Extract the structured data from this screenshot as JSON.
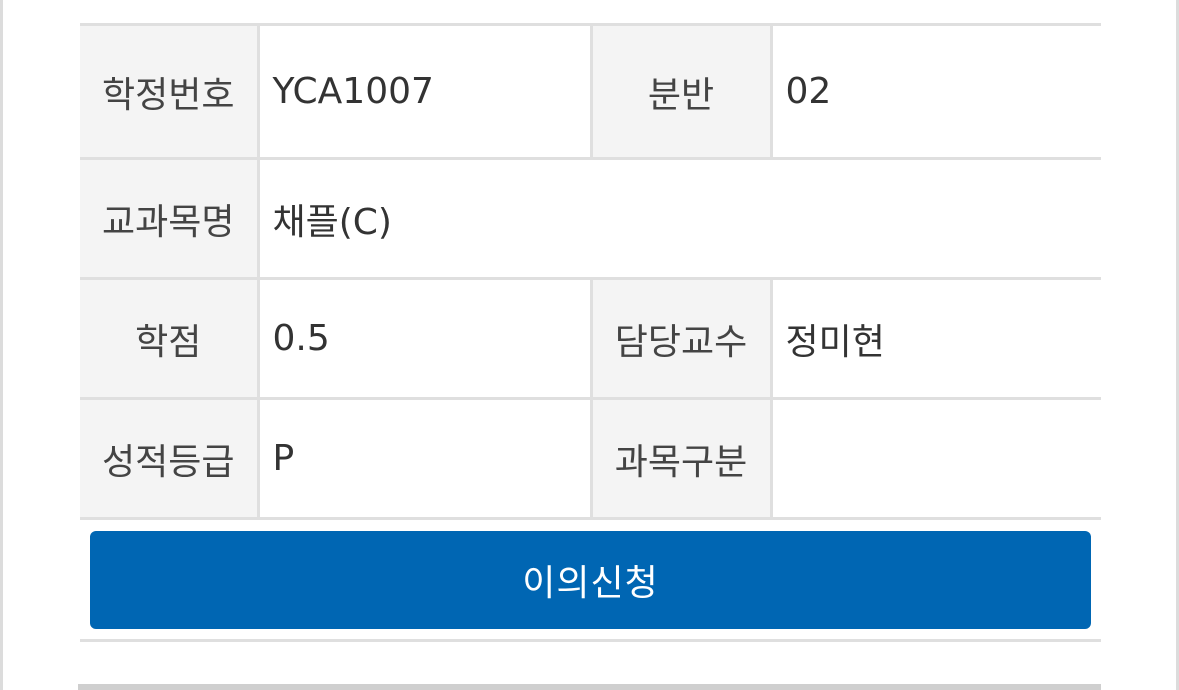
{
  "grade_detail": {
    "course_code_label": "학정번호",
    "course_code_value": "YCA1007",
    "section_label": "분반",
    "section_value": "02",
    "course_name_label": "교과목명",
    "course_name_value": "채플(C)",
    "credits_label": "학점",
    "credits_value": "0.5",
    "professor_label": "담당교수",
    "professor_value": "정미현",
    "grade_label": "성적등급",
    "grade_value": "P",
    "category_label": "과목구분",
    "category_value": ""
  },
  "actions": {
    "appeal_label": "이의신청"
  },
  "colors": {
    "button_background": "#0066b3",
    "label_background": "#f4f4f4",
    "border": "#dfdfdf"
  }
}
